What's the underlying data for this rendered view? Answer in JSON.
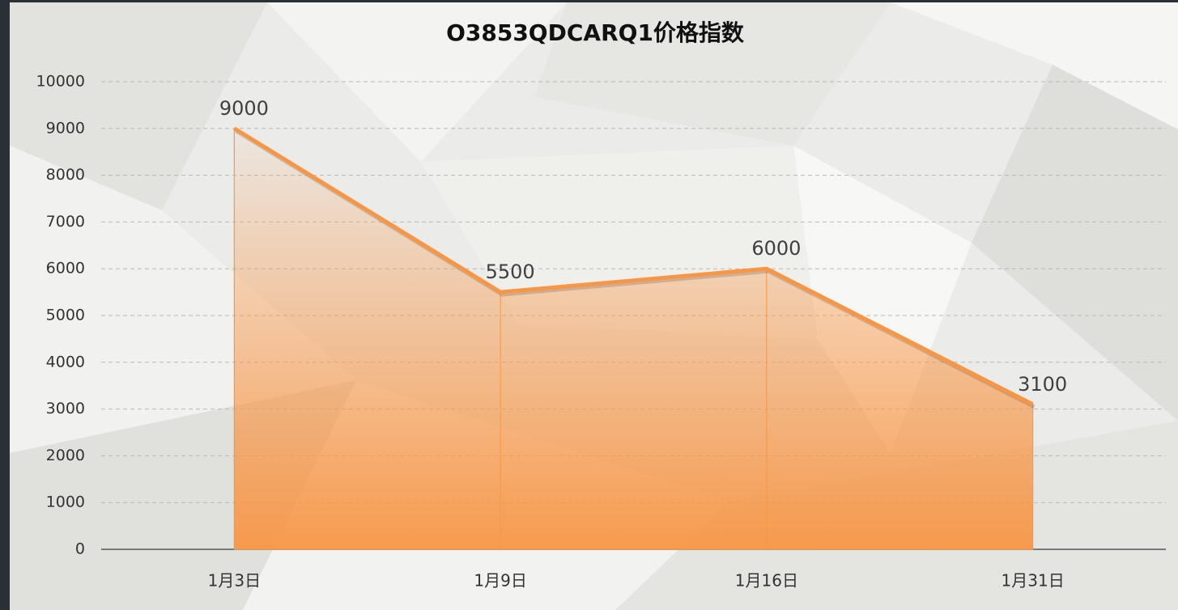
{
  "chart_data": {
    "type": "area",
    "title": "O3853QDCARQ1价格指数",
    "categories": [
      "1月3日",
      "1月9日",
      "1月16日",
      "1月31日"
    ],
    "values": [
      9000,
      5500,
      6000,
      3100
    ],
    "color": "#f79646",
    "ylim": [
      0,
      10000
    ],
    "yticks": [
      0,
      1000,
      2000,
      3000,
      4000,
      5000,
      6000,
      7000,
      8000,
      9000,
      10000
    ],
    "grid": true
  }
}
